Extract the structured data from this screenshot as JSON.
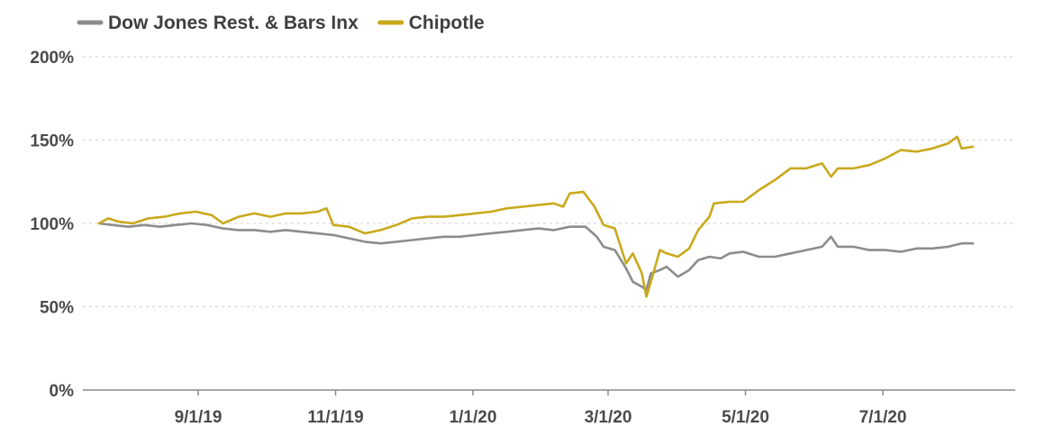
{
  "chart_data": {
    "type": "line",
    "title": "",
    "xlabel": "",
    "ylabel": "",
    "legend_position": "top-left",
    "ylim": [
      0,
      200
    ],
    "x_range": [
      "2019-07-19",
      "2020-08-14"
    ],
    "x_ticks": [
      {
        "date": "2019-09-01",
        "label": "9/1/19"
      },
      {
        "date": "2019-11-01",
        "label": "11/1/19"
      },
      {
        "date": "2020-01-01",
        "label": "1/1/20"
      },
      {
        "date": "2020-03-01",
        "label": "3/1/20"
      },
      {
        "date": "2020-05-01",
        "label": "5/1/20"
      },
      {
        "date": "2020-07-01",
        "label": "7/1/20"
      }
    ],
    "y_ticks": [
      {
        "value": 0,
        "label": "0%"
      },
      {
        "value": 50,
        "label": "50%"
      },
      {
        "value": 100,
        "label": "100%"
      },
      {
        "value": 150,
        "label": "150%"
      },
      {
        "value": 200,
        "label": "200%"
      }
    ],
    "grid": true,
    "series": [
      {
        "name": "Dow Jones Rest. & Bars Inx",
        "color": "#8c8c8c",
        "points": [
          [
            "2019-07-19",
            100
          ],
          [
            "2019-07-25",
            99
          ],
          [
            "2019-08-01",
            98
          ],
          [
            "2019-08-08",
            99
          ],
          [
            "2019-08-15",
            98
          ],
          [
            "2019-08-22",
            99
          ],
          [
            "2019-08-29",
            100
          ],
          [
            "2019-09-05",
            99
          ],
          [
            "2019-09-12",
            97
          ],
          [
            "2019-09-19",
            96
          ],
          [
            "2019-09-26",
            96
          ],
          [
            "2019-10-03",
            95
          ],
          [
            "2019-10-10",
            96
          ],
          [
            "2019-10-17",
            95
          ],
          [
            "2019-10-24",
            94
          ],
          [
            "2019-10-31",
            93
          ],
          [
            "2019-11-07",
            91
          ],
          [
            "2019-11-14",
            89
          ],
          [
            "2019-11-21",
            88
          ],
          [
            "2019-11-28",
            89
          ],
          [
            "2019-12-05",
            90
          ],
          [
            "2019-12-12",
            91
          ],
          [
            "2019-12-19",
            92
          ],
          [
            "2019-12-26",
            92
          ],
          [
            "2020-01-02",
            93
          ],
          [
            "2020-01-09",
            94
          ],
          [
            "2020-01-16",
            95
          ],
          [
            "2020-01-23",
            96
          ],
          [
            "2020-01-30",
            97
          ],
          [
            "2020-02-06",
            96
          ],
          [
            "2020-02-13",
            98
          ],
          [
            "2020-02-20",
            98
          ],
          [
            "2020-02-25",
            92
          ],
          [
            "2020-02-28",
            86
          ],
          [
            "2020-03-04",
            84
          ],
          [
            "2020-03-09",
            73
          ],
          [
            "2020-03-12",
            65
          ],
          [
            "2020-03-16",
            62
          ],
          [
            "2020-03-18",
            60
          ],
          [
            "2020-03-20",
            70
          ],
          [
            "2020-03-24",
            72
          ],
          [
            "2020-03-27",
            74
          ],
          [
            "2020-04-01",
            68
          ],
          [
            "2020-04-06",
            72
          ],
          [
            "2020-04-10",
            78
          ],
          [
            "2020-04-15",
            80
          ],
          [
            "2020-04-20",
            79
          ],
          [
            "2020-04-24",
            82
          ],
          [
            "2020-04-30",
            83
          ],
          [
            "2020-05-07",
            80
          ],
          [
            "2020-05-14",
            80
          ],
          [
            "2020-05-21",
            82
          ],
          [
            "2020-05-28",
            84
          ],
          [
            "2020-06-04",
            86
          ],
          [
            "2020-06-08",
            92
          ],
          [
            "2020-06-11",
            86
          ],
          [
            "2020-06-18",
            86
          ],
          [
            "2020-06-25",
            84
          ],
          [
            "2020-07-02",
            84
          ],
          [
            "2020-07-09",
            83
          ],
          [
            "2020-07-16",
            85
          ],
          [
            "2020-07-23",
            85
          ],
          [
            "2020-07-30",
            86
          ],
          [
            "2020-08-05",
            88
          ],
          [
            "2020-08-10",
            88
          ]
        ]
      },
      {
        "name": "Chipotle",
        "color": "#c9a91c",
        "points": [
          [
            "2019-07-19",
            100
          ],
          [
            "2019-07-23",
            103
          ],
          [
            "2019-07-28",
            101
          ],
          [
            "2019-08-03",
            100
          ],
          [
            "2019-08-10",
            103
          ],
          [
            "2019-08-17",
            104
          ],
          [
            "2019-08-24",
            106
          ],
          [
            "2019-08-31",
            107
          ],
          [
            "2019-09-07",
            105
          ],
          [
            "2019-09-12",
            100
          ],
          [
            "2019-09-19",
            104
          ],
          [
            "2019-09-26",
            106
          ],
          [
            "2019-10-03",
            104
          ],
          [
            "2019-10-10",
            106
          ],
          [
            "2019-10-17",
            106
          ],
          [
            "2019-10-24",
            107
          ],
          [
            "2019-10-28",
            109
          ],
          [
            "2019-10-31",
            99
          ],
          [
            "2019-11-07",
            98
          ],
          [
            "2019-11-14",
            94
          ],
          [
            "2019-11-21",
            96
          ],
          [
            "2019-11-28",
            99
          ],
          [
            "2019-12-05",
            103
          ],
          [
            "2019-12-12",
            104
          ],
          [
            "2019-12-19",
            104
          ],
          [
            "2019-12-26",
            105
          ],
          [
            "2020-01-02",
            106
          ],
          [
            "2020-01-09",
            107
          ],
          [
            "2020-01-16",
            109
          ],
          [
            "2020-01-23",
            110
          ],
          [
            "2020-01-30",
            111
          ],
          [
            "2020-02-06",
            112
          ],
          [
            "2020-02-10",
            110
          ],
          [
            "2020-02-13",
            118
          ],
          [
            "2020-02-19",
            119
          ],
          [
            "2020-02-24",
            110
          ],
          [
            "2020-02-28",
            99
          ],
          [
            "2020-03-04",
            97
          ],
          [
            "2020-03-09",
            76
          ],
          [
            "2020-03-12",
            82
          ],
          [
            "2020-03-16",
            70
          ],
          [
            "2020-03-18",
            56
          ],
          [
            "2020-03-20",
            65
          ],
          [
            "2020-03-24",
            84
          ],
          [
            "2020-03-27",
            82
          ],
          [
            "2020-04-01",
            80
          ],
          [
            "2020-04-06",
            85
          ],
          [
            "2020-04-10",
            96
          ],
          [
            "2020-04-15",
            104
          ],
          [
            "2020-04-17",
            112
          ],
          [
            "2020-04-24",
            113
          ],
          [
            "2020-04-30",
            113
          ],
          [
            "2020-05-07",
            120
          ],
          [
            "2020-05-14",
            126
          ],
          [
            "2020-05-21",
            133
          ],
          [
            "2020-05-28",
            133
          ],
          [
            "2020-06-04",
            136
          ],
          [
            "2020-06-08",
            128
          ],
          [
            "2020-06-11",
            133
          ],
          [
            "2020-06-18",
            133
          ],
          [
            "2020-06-25",
            135
          ],
          [
            "2020-07-02",
            139
          ],
          [
            "2020-07-09",
            144
          ],
          [
            "2020-07-16",
            143
          ],
          [
            "2020-07-23",
            145
          ],
          [
            "2020-07-30",
            148
          ],
          [
            "2020-08-03",
            152
          ],
          [
            "2020-08-05",
            145
          ],
          [
            "2020-08-10",
            146
          ]
        ]
      }
    ]
  }
}
